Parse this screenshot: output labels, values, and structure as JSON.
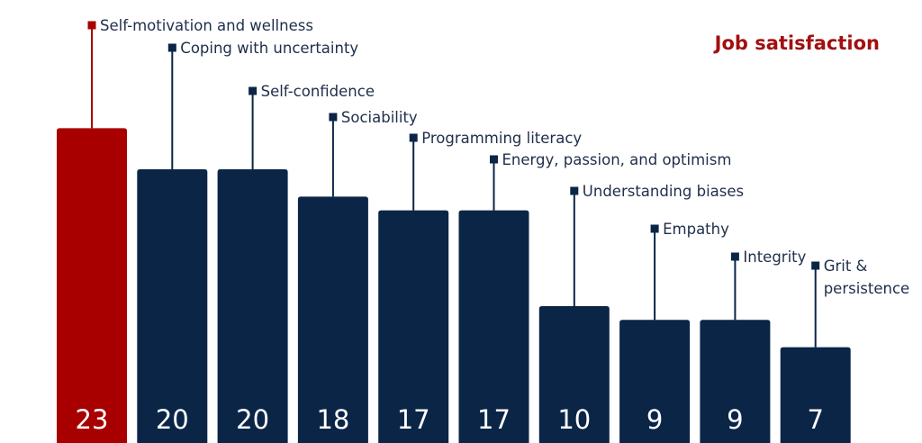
{
  "chart_data": {
    "type": "bar",
    "title": "Job satisfaction",
    "categories": [
      "Self-motivation and wellness",
      "Coping with uncertainty",
      "Self-confidence",
      "Sociability",
      "Programming literacy",
      "Energy, passion, and optimism",
      "Understanding biases",
      "Empathy",
      "Integrity",
      "Grit & persistence"
    ],
    "category_label_lines": [
      [
        "Self-motivation and wellness"
      ],
      [
        "Coping with uncertainty"
      ],
      [
        "Self-confidence"
      ],
      [
        "Sociability"
      ],
      [
        "Programming literacy"
      ],
      [
        "Energy, passion, and optimism"
      ],
      [
        "Understanding biases"
      ],
      [
        "Empathy"
      ],
      [
        "Integrity"
      ],
      [
        "Grit &",
        "persistence"
      ]
    ],
    "values": [
      23,
      20,
      20,
      18,
      17,
      17,
      10,
      9,
      9,
      7
    ],
    "value_labels": [
      "23",
      "20",
      "20",
      "18",
      "17",
      "17",
      "10",
      "9",
      "9",
      "7"
    ],
    "highlight_index": 0,
    "xlabel": "",
    "ylabel": "",
    "grid": false,
    "legend": "none",
    "colors": {
      "highlight": "#a80000",
      "bar": "#0b2547",
      "title": "#a01010",
      "label_text": "#1f2e4a",
      "value_text": "#ffffff"
    }
  }
}
